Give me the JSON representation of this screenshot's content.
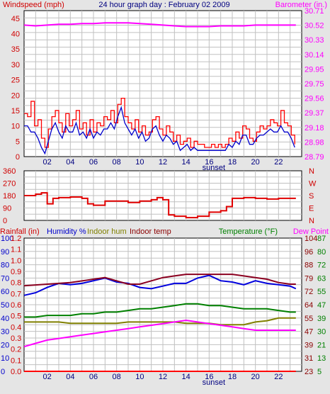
{
  "title": "24 hour graph day : February 02 2009",
  "colors": {
    "background": "#e5e5e5",
    "plot_bg": "#ffffff",
    "windspeed": "#ff0000",
    "wind_avg": "#0000cc",
    "barometer": "#ff00ff",
    "direction": "#e00000",
    "humidity": "#0000dd",
    "indoor_hum": "#808000",
    "indoor_temp": "#8b0020",
    "temperature": "#008000",
    "dew_point": "#ff00ff",
    "rainfall": "#ff0000"
  },
  "chart_data": [
    {
      "type": "line",
      "labels": {
        "left": "Windspeed (mph)",
        "right": "Barometer (in.)",
        "bottom_marker": "sunset"
      },
      "x_ticks": [
        "02",
        "04",
        "06",
        "08",
        "10",
        "12",
        "14",
        "16",
        "18",
        "20",
        "22"
      ],
      "x_range": [
        0,
        24
      ],
      "left_ticks": [
        "0",
        "2.5",
        "5",
        "7.5",
        "10",
        "12.5",
        "15",
        "17.5",
        "20",
        "22.5",
        "25",
        "27.5",
        "30",
        "32.5",
        "35",
        "37.5",
        "40",
        "42.5",
        "45",
        "47.5"
      ],
      "left_tick_labels": [
        "0",
        "5",
        "10",
        "15",
        "20",
        "25",
        "30",
        "35",
        "40",
        "45"
      ],
      "ylim_left": [
        0,
        47.5
      ],
      "right_tick_labels": [
        "28.79",
        "28.98",
        "29.18",
        "29.37",
        "29.56",
        "29.75",
        "29.95",
        "30.14",
        "30.33",
        "30.52",
        "30.71"
      ],
      "ylim_right": [
        28.79,
        30.71
      ],
      "grid": true,
      "series": [
        {
          "name": "Windspeed (mph)",
          "axis": "left",
          "x": [
            0,
            0.3,
            0.6,
            0.9,
            1.2,
            1.5,
            1.8,
            2.1,
            2.4,
            2.7,
            3,
            3.3,
            3.6,
            3.9,
            4.2,
            4.5,
            4.8,
            5.1,
            5.4,
            5.7,
            6,
            6.3,
            6.6,
            6.9,
            7.2,
            7.5,
            7.8,
            8.1,
            8.4,
            8.7,
            9,
            9.3,
            9.6,
            9.9,
            10.2,
            10.5,
            10.8,
            11.1,
            11.4,
            11.7,
            12,
            12.3,
            12.6,
            12.9,
            13.2,
            13.5,
            13.8,
            14.1,
            14.4,
            14.7,
            15,
            15.3,
            15.6,
            15.9,
            16.2,
            16.5,
            16.8,
            17.1,
            17.4,
            17.7,
            18,
            18.3,
            18.6,
            18.9,
            19.2,
            19.5,
            19.8,
            20.1,
            20.4,
            20.7,
            21,
            21.3,
            21.6,
            21.9,
            22.2,
            22.5,
            22.8,
            23.1,
            23.4
          ],
          "values": [
            14,
            13,
            18,
            10,
            12,
            6,
            3,
            9,
            13,
            15,
            11,
            8,
            14,
            10,
            12,
            15,
            9,
            11,
            7,
            12,
            8,
            11,
            10,
            13,
            12,
            15,
            11,
            17,
            19,
            13,
            11,
            9,
            12,
            8,
            10,
            7,
            8,
            12,
            13,
            9,
            7,
            10,
            8,
            5,
            7,
            4,
            5,
            6,
            3,
            5,
            4,
            4,
            3,
            3,
            4,
            3,
            4,
            3,
            4,
            6,
            5,
            8,
            6,
            10,
            9,
            6,
            5,
            8,
            10,
            9,
            10,
            12,
            11,
            10,
            15,
            11,
            10,
            7,
            4
          ]
        },
        {
          "name": "Wind average (mph)",
          "axis": "left",
          "x": [
            0,
            0.3,
            0.6,
            0.9,
            1.2,
            1.5,
            1.8,
            2.1,
            2.4,
            2.7,
            3,
            3.3,
            3.6,
            3.9,
            4.2,
            4.5,
            4.8,
            5.1,
            5.4,
            5.7,
            6,
            6.3,
            6.6,
            6.9,
            7.2,
            7.5,
            7.8,
            8.1,
            8.4,
            8.7,
            9,
            9.3,
            9.6,
            9.9,
            10.2,
            10.5,
            10.8,
            11.1,
            11.4,
            11.7,
            12,
            12.3,
            12.6,
            12.9,
            13.2,
            13.5,
            13.8,
            14.1,
            14.4,
            14.7,
            15,
            15.3,
            15.6,
            15.9,
            16.2,
            16.5,
            16.8,
            17.1,
            17.4,
            17.7,
            18,
            18.3,
            18.6,
            18.9,
            19.2,
            19.5,
            19.8,
            20.1,
            20.4,
            20.7,
            21,
            21.3,
            21.6,
            21.9,
            22.2,
            22.5,
            22.8,
            23.1,
            23.4
          ],
          "values": [
            10,
            10,
            8,
            8,
            6,
            3,
            1,
            5,
            9,
            11,
            8,
            6,
            10,
            8,
            8,
            11,
            7,
            8,
            6,
            9,
            6,
            8,
            7,
            9,
            9,
            11,
            9,
            13,
            16,
            11,
            9,
            7,
            9,
            6,
            8,
            5,
            6,
            9,
            10,
            7,
            5,
            7,
            6,
            4,
            5,
            2,
            3,
            4,
            2,
            3,
            2,
            2,
            2,
            2,
            2,
            2,
            2,
            2,
            2,
            4,
            3,
            5,
            4,
            7,
            7,
            4,
            4,
            6,
            7,
            7,
            8,
            9,
            8,
            8,
            10,
            8,
            8,
            6,
            3
          ]
        },
        {
          "name": "Barometer (in.)",
          "axis": "right",
          "x": [
            0,
            1,
            2,
            3,
            4,
            5,
            6,
            7,
            8,
            9,
            10,
            11,
            12,
            13,
            14,
            15,
            16,
            17,
            18,
            19,
            20,
            21,
            22,
            23,
            23.5
          ],
          "values": [
            30.52,
            30.51,
            30.52,
            30.53,
            30.53,
            30.54,
            30.54,
            30.55,
            30.55,
            30.55,
            30.54,
            30.53,
            30.52,
            30.51,
            30.5,
            30.5,
            30.5,
            30.51,
            30.51,
            30.51,
            30.52,
            30.52,
            30.52,
            30.52,
            30.52
          ]
        }
      ]
    },
    {
      "type": "line",
      "left_tick_labels": [
        "0",
        "90",
        "180",
        "270",
        "360"
      ],
      "right_tick_labels": [
        "N",
        "E",
        "S",
        "W",
        "N"
      ],
      "ylim": [
        0,
        360
      ],
      "series": [
        {
          "name": "Wind direction",
          "x": [
            0,
            1,
            1.5,
            2,
            2.5,
            3,
            4,
            5,
            5.5,
            6,
            7,
            8,
            9,
            10,
            11,
            11.5,
            12,
            12.5,
            13,
            14,
            15,
            16,
            17,
            17.5,
            18,
            19,
            20,
            21,
            22,
            23,
            23.5
          ],
          "values": [
            180,
            190,
            200,
            120,
            160,
            165,
            170,
            160,
            120,
            110,
            140,
            140,
            130,
            140,
            150,
            165,
            150,
            40,
            30,
            20,
            30,
            60,
            70,
            100,
            160,
            165,
            160,
            155,
            160,
            160,
            160
          ]
        }
      ]
    },
    {
      "type": "line",
      "labels": {
        "left": "Rainfall (in)",
        "humidity": "Humidity %",
        "indoor_hum": "Indoor hum",
        "indoor_temp": "Indoor temp",
        "right": "Temperature (°F)",
        "dew_point": "Dew Point",
        "bottom_marker": "sunset"
      },
      "rain_ticks": [
        "0.0",
        "0.1",
        "0.2",
        "0.3",
        "0.4",
        "0.5",
        "0.6",
        "0.7",
        "0.8",
        "0.9",
        "1.0",
        "1.1",
        "1.2"
      ],
      "humidity_ticks": [
        "0",
        "10",
        "20",
        "30",
        "40",
        "50",
        "60",
        "70",
        "80",
        "90",
        "100"
      ],
      "indoor_temp_ticks": [
        "5",
        "13",
        "21",
        "30",
        "39",
        "47",
        "55",
        "63",
        "72",
        "80",
        "87"
      ],
      "temperature_ticks": [
        "23",
        "31",
        "39",
        "47",
        "55",
        "64",
        "72",
        "79",
        "88",
        "96",
        "104"
      ],
      "ylim_temperature": [
        23,
        104
      ],
      "x_ticks": [
        "02",
        "04",
        "06",
        "08",
        "10",
        "12",
        "14",
        "16",
        "18",
        "20",
        "22"
      ],
      "series": [
        {
          "name": "Humidity %",
          "axis": "humidity",
          "x": [
            0,
            1,
            2,
            3,
            4,
            5,
            6,
            7,
            8,
            9,
            10,
            11,
            12,
            13,
            14,
            15,
            16,
            17,
            18,
            19,
            20,
            21,
            22,
            23,
            23.5
          ],
          "values": [
            57,
            59,
            63,
            66,
            65,
            66,
            68,
            70,
            67,
            66,
            63,
            62,
            64,
            66,
            66,
            70,
            72,
            68,
            67,
            65,
            68,
            66,
            65,
            64,
            62
          ]
        },
        {
          "name": "Indoor hum",
          "axis": "humidity",
          "x": [
            0,
            1,
            2,
            3,
            4,
            5,
            6,
            7,
            8,
            9,
            10,
            11,
            12,
            13,
            14,
            15,
            16,
            17,
            18,
            19,
            20,
            21,
            22,
            23,
            23.5
          ],
          "values": [
            37,
            37,
            37,
            37,
            36,
            36,
            36,
            36,
            36,
            37,
            37,
            37,
            37,
            37,
            36,
            36,
            36,
            35,
            35,
            35,
            37,
            38,
            40,
            40,
            40
          ]
        },
        {
          "name": "Indoor temp",
          "axis": "temperature",
          "x": [
            0,
            2,
            4,
            6,
            7,
            8,
            9,
            10,
            11,
            12,
            13,
            14,
            15,
            16,
            17,
            18,
            19,
            20,
            21,
            22,
            23,
            23.5
          ],
          "values": [
            75,
            76,
            77,
            79,
            80,
            78,
            76,
            76,
            78,
            80,
            81,
            82,
            82,
            82,
            82,
            82,
            81,
            80,
            79,
            77,
            76,
            76
          ]
        },
        {
          "name": "Temperature (°F)",
          "axis": "temperature",
          "x": [
            0,
            1,
            2,
            3,
            4,
            5,
            6,
            7,
            8,
            9,
            10,
            11,
            12,
            13,
            14,
            15,
            16,
            17,
            18,
            19,
            20,
            21,
            22,
            23,
            23.5
          ],
          "values": [
            56,
            56,
            57,
            57,
            57,
            58,
            58,
            59,
            59,
            60,
            61,
            61,
            62,
            63,
            64,
            64,
            63,
            63,
            62,
            61,
            61,
            61,
            60,
            59,
            59
          ]
        },
        {
          "name": "Dew Point",
          "axis": "temperature",
          "x": [
            0,
            1,
            2,
            3,
            4,
            5,
            6,
            7,
            8,
            9,
            10,
            11,
            12,
            13,
            14,
            15,
            16,
            17,
            18,
            19,
            20,
            21,
            22,
            23,
            23.5
          ],
          "values": [
            38,
            40,
            42,
            43,
            44,
            45,
            46,
            47,
            48,
            49,
            50,
            51,
            52,
            53,
            54,
            53,
            52,
            51,
            50,
            49,
            48,
            48,
            48,
            48,
            48
          ]
        },
        {
          "name": "Rainfall (in)",
          "axis": "rain",
          "x": [
            0,
            23.5
          ],
          "values": [
            0,
            0
          ]
        }
      ]
    }
  ]
}
